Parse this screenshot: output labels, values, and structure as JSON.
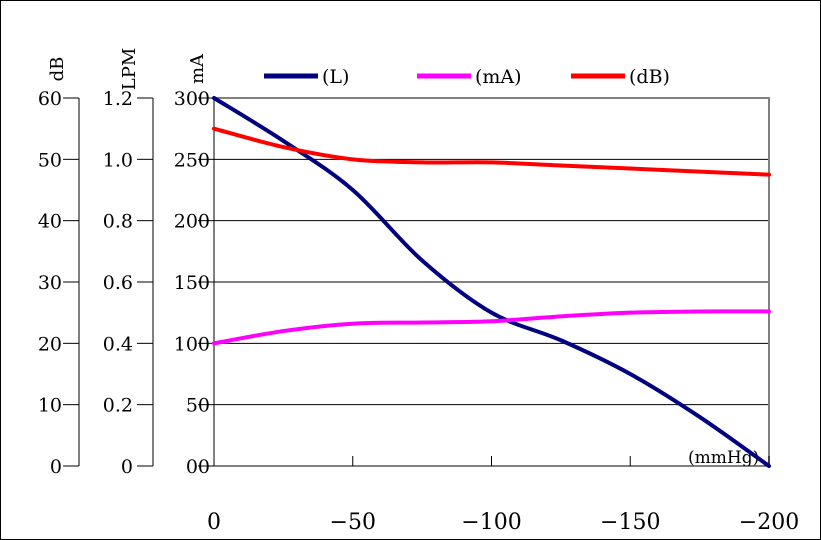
{
  "chart_data": {
    "type": "line",
    "x_unit": "(mmHg)",
    "x_ticks": [
      "0",
      "−50",
      "−100",
      "−150",
      "−200"
    ],
    "x_range": [
      0,
      -200
    ],
    "y_axes": [
      {
        "name": "dB",
        "range": [
          0,
          60
        ],
        "ticks": [
          "0",
          "10",
          "20",
          "30",
          "40",
          "50",
          "60"
        ]
      },
      {
        "name": "LPM",
        "range": [
          0,
          1.2
        ],
        "ticks": [
          "0",
          "0.2",
          "0.4",
          "0.6",
          "0.8",
          "1.0",
          "1.2"
        ]
      },
      {
        "name": "mA",
        "range": [
          0,
          300
        ],
        "ticks": [
          "00",
          "50",
          "100",
          "150",
          "200",
          "250",
          "300"
        ]
      }
    ],
    "grid": true,
    "legend_position": "top",
    "series": [
      {
        "name": "(L)",
        "axis": "LPM",
        "color": "#000080",
        "x": [
          0,
          -25,
          -50,
          -75,
          -100,
          -125,
          -150,
          -175,
          -200
        ],
        "y": [
          1.2,
          1.06,
          0.9,
          0.67,
          0.5,
          0.41,
          0.3,
          0.16,
          0.0
        ]
      },
      {
        "name": "(mA)",
        "axis": "mA",
        "color": "#ff00ff",
        "x": [
          0,
          -25,
          -50,
          -75,
          -100,
          -125,
          -150,
          -175,
          -200
        ],
        "y": [
          100,
          110,
          116,
          117,
          118,
          122,
          125,
          126,
          126
        ]
      },
      {
        "name": "(dB)",
        "axis": "dB",
        "color": "#ff0000",
        "x": [
          0,
          -25,
          -50,
          -75,
          -100,
          -125,
          -150,
          -175,
          -200
        ],
        "y": [
          55,
          52,
          50,
          49.5,
          49.5,
          49,
          48.5,
          48,
          47.5
        ]
      }
    ]
  }
}
